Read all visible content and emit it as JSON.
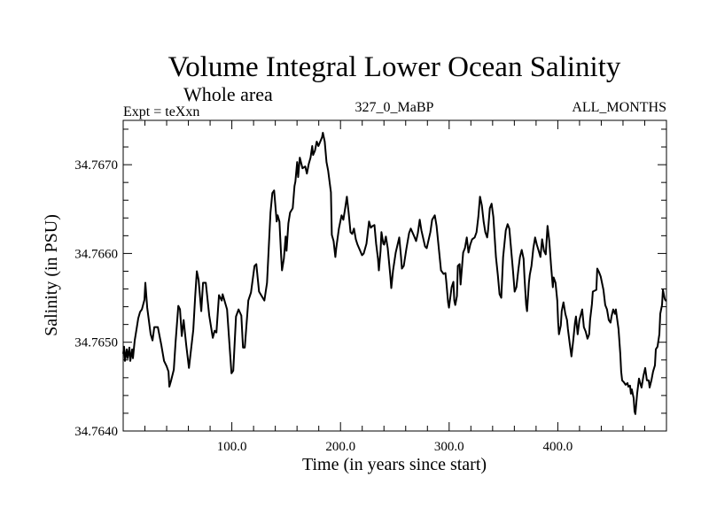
{
  "chart_data": {
    "type": "line",
    "title": "Volume Integral Lower Ocean Salinity",
    "subtitle": "Whole area",
    "annotations": {
      "left": "Expt = teXxn",
      "center": "327_0_MaBP",
      "right": "ALL_MONTHS"
    },
    "xlabel": "Time (in years since start)",
    "ylabel": "Salinity (in PSU)",
    "xlim": [
      0,
      500
    ],
    "ylim": [
      34.764,
      34.76735
    ],
    "x_major_ticks": [
      100,
      200,
      300,
      400
    ],
    "x_tick_labels": [
      "100.0",
      "200.0",
      "300.0",
      "400.0"
    ],
    "x_minor_step": 20,
    "y_major_ticks": [
      34.764,
      34.765,
      34.766,
      34.767
    ],
    "y_tick_labels": [
      "34.7640",
      "34.7650",
      "34.7660",
      "34.7670"
    ],
    "y_minor_step": 0.0002,
    "grid": false,
    "legend": "none",
    "series": [
      {
        "name": "Salinity",
        "color": "#000000",
        "x": [
          0.0,
          0.8,
          1.6,
          3.3,
          4.1,
          5.7,
          6.5,
          8.2,
          9.0,
          10.6,
          12.3,
          13.9,
          15.5,
          17.2,
          19.6,
          20.4,
          22.1,
          25.3,
          27.0,
          28.6,
          31.9,
          35.1,
          37.6,
          40.0,
          41.7,
          42.5,
          44.1,
          46.6,
          48.2,
          50.7,
          52.3,
          53.9,
          55.6,
          58.0,
          60.5,
          64.5,
          66.2,
          67.8,
          69.4,
          71.9,
          73.5,
          76.0,
          79.2,
          82.5,
          84.2,
          85.8,
          88.2,
          90.7,
          91.5,
          95.6,
          98.0,
          99.7,
          101.3,
          103.8,
          106.2,
          108.7,
          110.3,
          111.9,
          115.2,
          117.6,
          120.9,
          122.5,
          125.0,
          129.9,
          132.4,
          135.6,
          137.3,
          138.9,
          141.3,
          142.2,
          143.8,
          145.4,
          146.2,
          147.9,
          149.5,
          150.3,
          152.0,
          153.6,
          156.0,
          157.7,
          158.5,
          160.1,
          161.0,
          162.6,
          165.0,
          167.5,
          169.1,
          170.8,
          172.4,
          174.0,
          174.8,
          176.5,
          178.1,
          179.7,
          183.0,
          183.8,
          185.5,
          187.1,
          188.7,
          191.2,
          192.0,
          193.6,
          195.3,
          196.1,
          198.5,
          201.0,
          202.6,
          204.3,
          205.9,
          207.5,
          209.2,
          210.8,
          212.4,
          214.1,
          215.7,
          218.1,
          219.8,
          221.4,
          223.9,
          225.5,
          226.3,
          227.9,
          229.6,
          231.2,
          232.8,
          234.5,
          235.3,
          236.9,
          237.7,
          239.4,
          240.2,
          241.8,
          243.5,
          245.9,
          246.7,
          248.4,
          250.8,
          254.1,
          255.7,
          256.5,
          258.2,
          260.6,
          263.1,
          264.7,
          267.2,
          269.6,
          271.2,
          272.9,
          274.5,
          277.8,
          279.4,
          282.7,
          284.3,
          286.8,
          288.4,
          290.9,
          292.5,
          294.9,
          296.6,
          297.4,
          299.0,
          299.8,
          302.3,
          303.9,
          304.7,
          305.6,
          307.2,
          308.0,
          309.6,
          310.5,
          312.9,
          314.5,
          316.2,
          317.8,
          319.4,
          321.1,
          323.5,
          325.2,
          326.8,
          328.4,
          330.1,
          331.7,
          333.3,
          335.0,
          335.8,
          337.4,
          339.1,
          340.7,
          343.1,
          344.8,
          346.4,
          348.0,
          349.7,
          352.1,
          353.8,
          355.4,
          358.7,
          360.3,
          361.9,
          363.6,
          365.2,
          366.8,
          368.5,
          369.3,
          370.9,
          371.7,
          373.4,
          374.2,
          375.8,
          377.5,
          379.1,
          380.7,
          382.4,
          384.0,
          385.6,
          387.3,
          388.9,
          390.5,
          392.2,
          393.8,
          394.6,
          395.4,
          396.2,
          397.9,
          399.5,
          400.3,
          401.1,
          402.8,
          403.6,
          405.2,
          406.9,
          408.5,
          409.3,
          410.9,
          412.6,
          414.2,
          415.8,
          416.7,
          418.3,
          419.9,
          422.4,
          424.0,
          425.7,
          427.3,
          428.9,
          429.7,
          431.4,
          432.2,
          435.5,
          436.3,
          437.9,
          439.5,
          442.0,
          443.6,
          445.3,
          446.9,
          448.5,
          449.4,
          451.0,
          452.6,
          453.4,
          455.9,
          457.5,
          458.3,
          459.2,
          460.8,
          462.4,
          464.1,
          464.9,
          466.5,
          467.3,
          468.1,
          469.8,
          470.6,
          471.4,
          473.0,
          474.7,
          476.3,
          477.1,
          478.8,
          480.4,
          482.0,
          483.7,
          484.5,
          486.1,
          487.7,
          489.4,
          490.2,
          491.8,
          493.5,
          494.3,
          495.9,
          496.7,
          498.4,
          499.2,
          500.0
        ],
        "y": [
          34.76487,
          34.76495,
          34.76479,
          34.76492,
          34.76482,
          34.76494,
          34.76479,
          34.76492,
          34.76482,
          34.76502,
          34.76515,
          34.76527,
          34.76534,
          34.76537,
          34.76548,
          34.76567,
          34.76539,
          34.76509,
          34.76502,
          34.76517,
          34.76517,
          34.76497,
          34.76479,
          34.76473,
          34.76467,
          34.7645,
          34.76457,
          34.76469,
          34.765,
          34.76541,
          34.76537,
          34.76507,
          34.76525,
          34.76497,
          34.76471,
          34.76514,
          34.76551,
          34.7658,
          34.7657,
          34.76535,
          34.76567,
          34.76567,
          34.7653,
          34.76505,
          34.76513,
          34.76511,
          34.76553,
          34.76547,
          34.76554,
          34.76537,
          34.76495,
          34.76465,
          34.76468,
          34.76529,
          34.76537,
          34.7653,
          34.76494,
          34.76494,
          34.76547,
          34.76556,
          34.76586,
          34.76588,
          34.76557,
          34.76547,
          34.76567,
          34.76646,
          34.76668,
          34.76671,
          34.76636,
          34.76643,
          34.76636,
          34.76596,
          34.76581,
          34.76594,
          34.76619,
          34.76603,
          34.76634,
          34.76646,
          34.76651,
          34.76676,
          34.76681,
          34.76703,
          34.76686,
          34.76708,
          34.76696,
          34.76698,
          34.7669,
          34.76701,
          34.76708,
          34.76721,
          34.76711,
          34.76716,
          34.76726,
          34.76721,
          34.76731,
          34.76736,
          34.76726,
          34.76703,
          34.76693,
          34.76669,
          34.76621,
          34.76614,
          34.76596,
          34.76606,
          34.76628,
          34.76643,
          34.76638,
          34.76651,
          34.76664,
          34.76646,
          34.76624,
          34.76622,
          34.76628,
          34.76616,
          34.7661,
          34.76603,
          34.76598,
          34.766,
          34.76611,
          34.76628,
          34.76636,
          34.76629,
          34.76631,
          34.76632,
          34.76611,
          34.76594,
          34.76581,
          34.76603,
          34.76624,
          34.76611,
          34.7661,
          34.76619,
          34.76606,
          34.76574,
          34.76561,
          34.76581,
          34.76601,
          34.76618,
          34.76596,
          34.76583,
          34.76586,
          34.76605,
          34.76623,
          34.76628,
          34.76621,
          34.76614,
          34.76623,
          34.76638,
          34.76626,
          34.76608,
          34.76606,
          34.76624,
          34.76638,
          34.76643,
          34.76631,
          34.76601,
          34.76581,
          34.76577,
          34.76578,
          34.76568,
          34.76545,
          34.76539,
          34.76562,
          34.76568,
          34.76547,
          34.76542,
          34.76552,
          34.76586,
          34.76588,
          34.76565,
          34.76601,
          34.76606,
          34.76618,
          34.76601,
          34.7661,
          34.76616,
          34.76618,
          34.76624,
          34.76641,
          34.76664,
          34.76654,
          34.76636,
          34.76624,
          34.76618,
          34.76626,
          34.76651,
          34.76656,
          34.76641,
          34.76596,
          34.76576,
          34.76554,
          34.7655,
          34.76596,
          34.76626,
          34.76633,
          34.76628,
          34.76581,
          34.76557,
          34.76562,
          34.76581,
          34.76596,
          34.76604,
          34.76594,
          34.76573,
          34.76542,
          34.76535,
          34.76567,
          34.76576,
          34.76586,
          34.76606,
          34.76618,
          34.7661,
          34.76603,
          34.76596,
          34.76616,
          34.76603,
          34.76599,
          34.76631,
          34.76614,
          34.76586,
          34.76574,
          34.76562,
          34.76573,
          34.76567,
          34.76547,
          34.76522,
          34.76509,
          34.76519,
          34.76535,
          34.76545,
          34.76532,
          34.76525,
          34.76515,
          34.76499,
          34.76484,
          34.76502,
          34.76522,
          34.76529,
          34.76509,
          34.76525,
          34.76537,
          34.76517,
          34.76512,
          34.76504,
          34.76509,
          34.76525,
          34.76543,
          34.76557,
          34.76559,
          34.76583,
          34.76579,
          34.76574,
          34.76559,
          34.76542,
          34.76537,
          34.76525,
          34.76522,
          34.76529,
          34.76537,
          34.76532,
          34.76537,
          34.76515,
          34.76487,
          34.76467,
          34.76457,
          34.76455,
          34.76452,
          34.76454,
          34.7645,
          34.76451,
          34.76442,
          34.76447,
          34.76437,
          34.76422,
          34.76419,
          34.76442,
          34.76459,
          34.76452,
          34.76449,
          34.76462,
          34.76471,
          34.76457,
          34.76457,
          34.76449,
          34.76457,
          34.76467,
          34.76474,
          34.76492,
          34.76495,
          34.76509,
          34.76532,
          34.76542,
          34.76559,
          34.76549,
          34.76547,
          34.76547
        ]
      }
    ]
  }
}
